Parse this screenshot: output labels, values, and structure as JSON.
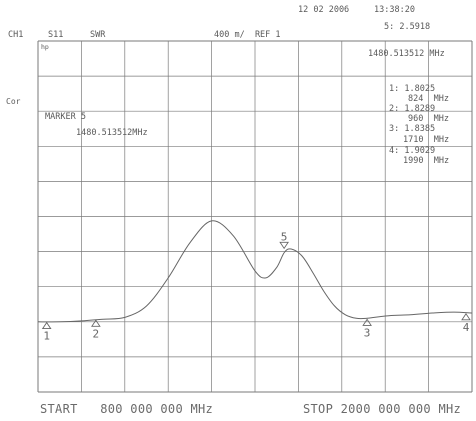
{
  "header": {
    "date": "12 02 2006",
    "time": "13:38:20",
    "channel": "CH1",
    "parameter": "S11",
    "format": "SWR",
    "scale": "400 m/  REF 1",
    "active_marker_readout": "5: 2.5918"
  },
  "side": {
    "correction": "Cor"
  },
  "graticule": {
    "hp_label": "hp",
    "active_marker_frequency": "1480.513512 MHz",
    "marker_label": "MARKER 5",
    "marker_frequency": "1480.513512MHz",
    "marker_table": [
      {
        "value": "1: 1.8025",
        "freq": "824  MHz"
      },
      {
        "value": "2: 1.8289",
        "freq": "960  MHz"
      },
      {
        "value": "3: 1.8385",
        "freq": "1710  MHz"
      },
      {
        "value": "4: 1.9029",
        "freq": "1990  MHz"
      }
    ]
  },
  "footer": {
    "start": "START   800 000 000 MHz",
    "stop": "STOP 2000 000 000 MHz"
  },
  "chart_data": {
    "type": "line",
    "x_range_mhz": [
      800,
      2000
    ],
    "y_per_division": 0.4,
    "reference_value": 1,
    "markers": [
      {
        "label": "1",
        "freq_mhz": 824,
        "swr": 1.8025
      },
      {
        "label": "2",
        "freq_mhz": 960,
        "swr": 1.8289
      },
      {
        "label": "3",
        "freq_mhz": 1710,
        "swr": 1.8385
      },
      {
        "label": "4",
        "freq_mhz": 1990,
        "swr": 1.9029
      },
      {
        "label": "5",
        "freq_mhz": 1480.513512,
        "swr": 2.5918
      }
    ],
    "trace": {
      "freq_mhz": [
        800,
        860,
        920,
        980,
        1040,
        1100,
        1160,
        1220,
        1280,
        1340,
        1400,
        1430,
        1460,
        1481,
        1500,
        1530,
        1560,
        1590,
        1620,
        1650,
        1680,
        1710,
        1770,
        1830,
        1890,
        1950,
        2000
      ],
      "swr": [
        1.8,
        1.8,
        1.81,
        1.83,
        1.85,
        1.98,
        2.3,
        2.7,
        2.95,
        2.78,
        2.38,
        2.3,
        2.42,
        2.59,
        2.63,
        2.55,
        2.36,
        2.15,
        1.98,
        1.88,
        1.84,
        1.84,
        1.87,
        1.88,
        1.9,
        1.91,
        1.9
      ]
    }
  }
}
